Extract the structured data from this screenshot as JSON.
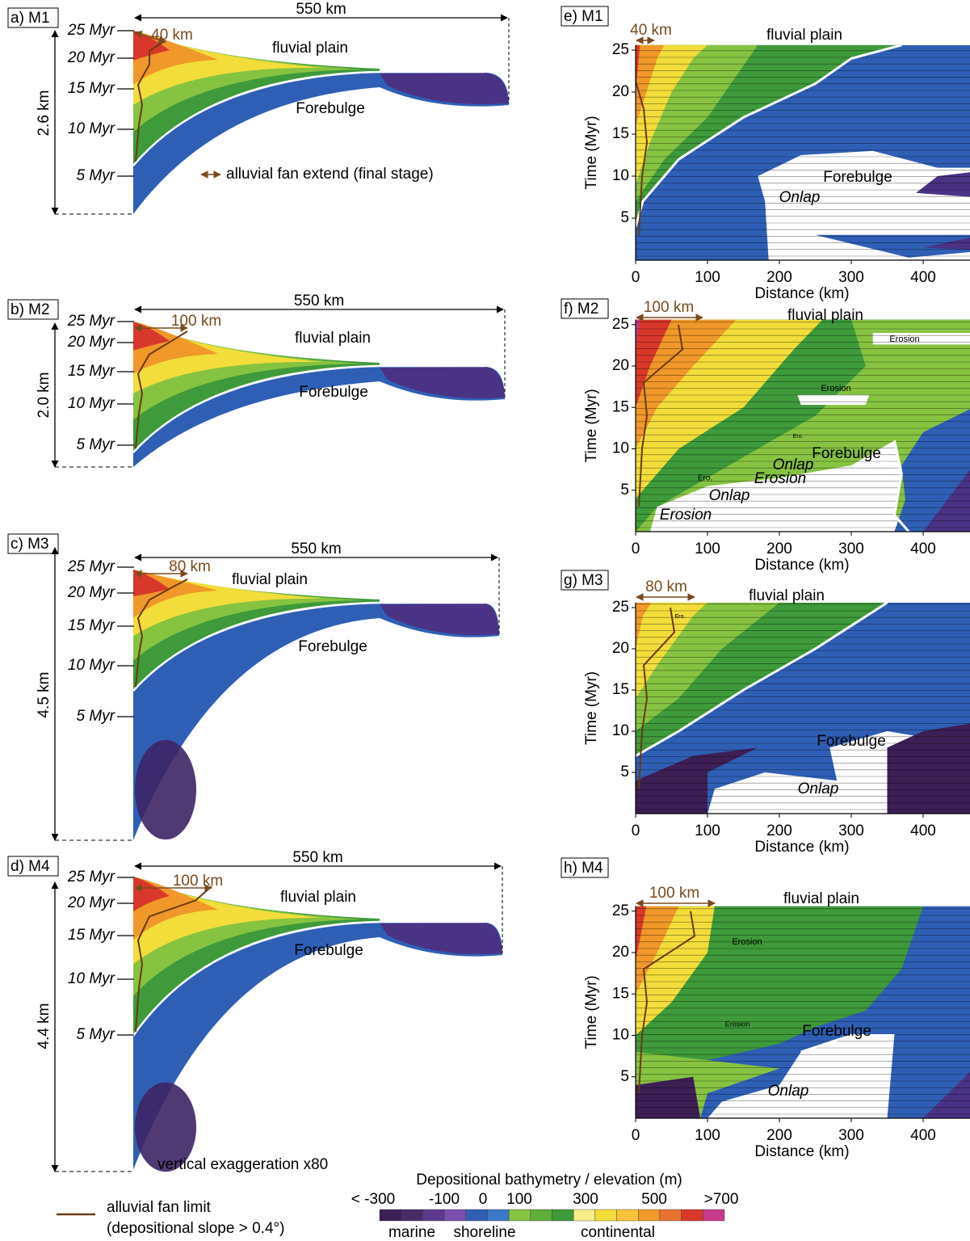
{
  "left_panels": [
    {
      "label": "a) M1",
      "length": "550 km",
      "fan_extent": "40 km",
      "ages": [
        "25 Myr",
        "20 Myr",
        "15 Myr",
        "10 Myr",
        "5 Myr"
      ],
      "thickness": "2.6 km",
      "fluvial": "fluvial plain",
      "forebulge": "Forebulge"
    },
    {
      "label": "b) M2",
      "length": "550 km",
      "fan_extent": "100 km",
      "ages": [
        "25 Myr",
        "20 Myr",
        "15 Myr",
        "10 Myr",
        "5 Myr"
      ],
      "thickness": "2.0 km",
      "fluvial": "fluvial plain",
      "forebulge": "Forebulge"
    },
    {
      "label": "c) M3",
      "length": "550 km",
      "fan_extent": "80 km",
      "ages": [
        "25 Myr",
        "20 Myr",
        "15 Myr",
        "10 Myr",
        "5 Myr"
      ],
      "thickness": "4.5 km",
      "fluvial": "fluvial plain",
      "forebulge": "Forebulge"
    },
    {
      "label": "d) M4",
      "length": "550 km",
      "fan_extent": "100 km",
      "ages": [
        "25 Myr",
        "20 Myr",
        "15 Myr",
        "10 Myr",
        "5 Myr"
      ],
      "thickness": "4.4 km",
      "fluvial": "fluvial plain",
      "forebulge": "Forebulge"
    }
  ],
  "fan_legend": "alluvial fan extend (final stage)",
  "exaggeration": "vertical exaggeration x80",
  "right_panels": [
    {
      "label": "e) M1",
      "fan_extent": "40 km",
      "fluvial": "fluvial plain",
      "forebulge": "Forebulge",
      "y_title": "Time (Myr)",
      "x_title": "Distance (km)",
      "yticks": [
        "5",
        "10",
        "15",
        "20",
        "25"
      ],
      "xticks": [
        "0",
        "100",
        "200",
        "300",
        "400"
      ],
      "notes": [
        "Onlap"
      ]
    },
    {
      "label": "f) M2",
      "fan_extent": "100 km",
      "fluvial": "fluvial plain",
      "forebulge": "Forebulge",
      "y_title": "Time (Myr)",
      "x_title": "Distance (km)",
      "yticks": [
        "5",
        "10",
        "15",
        "20",
        "25"
      ],
      "xticks": [
        "0",
        "100",
        "200",
        "300",
        "400"
      ],
      "notes": [
        "Erosion",
        "Erosion",
        "Ero.",
        "Onlap",
        "Ero.",
        "Erosion",
        "Onlap",
        "Erosion"
      ]
    },
    {
      "label": "g) M3",
      "fan_extent": "80 km",
      "fluvial": "fluvial plain",
      "forebulge": "Forebulge",
      "y_title": "Time (Myr)",
      "x_title": "Distance (km)",
      "yticks": [
        "5",
        "10",
        "15",
        "20",
        "25"
      ],
      "xticks": [
        "0",
        "100",
        "200",
        "300",
        "400"
      ],
      "notes": [
        "Ero.",
        "Onlap"
      ]
    },
    {
      "label": "h) M4",
      "fan_extent": "100 km",
      "fluvial": "fluvial plain",
      "forebulge": "Forebulge",
      "y_title": "Time (Myr)",
      "x_title": "Distance (km)",
      "yticks": [
        "5",
        "10",
        "15",
        "20",
        "25"
      ],
      "xticks": [
        "0",
        "100",
        "200",
        "300",
        "400"
      ],
      "notes": [
        "Erosion",
        "Erosion",
        "Onlap"
      ]
    }
  ],
  "legend": {
    "fan_limit": "alluvial fan limit",
    "fan_limit_note": "(depositional slope > 0.4°)",
    "colorbar_title": "Depositional bathymetry / elevation (m)",
    "colorbar_labels": [
      "< -300",
      "-100",
      "0",
      "100",
      "300",
      "500",
      ">700"
    ],
    "groups": [
      "marine",
      "shoreline",
      "continental"
    ]
  }
}
